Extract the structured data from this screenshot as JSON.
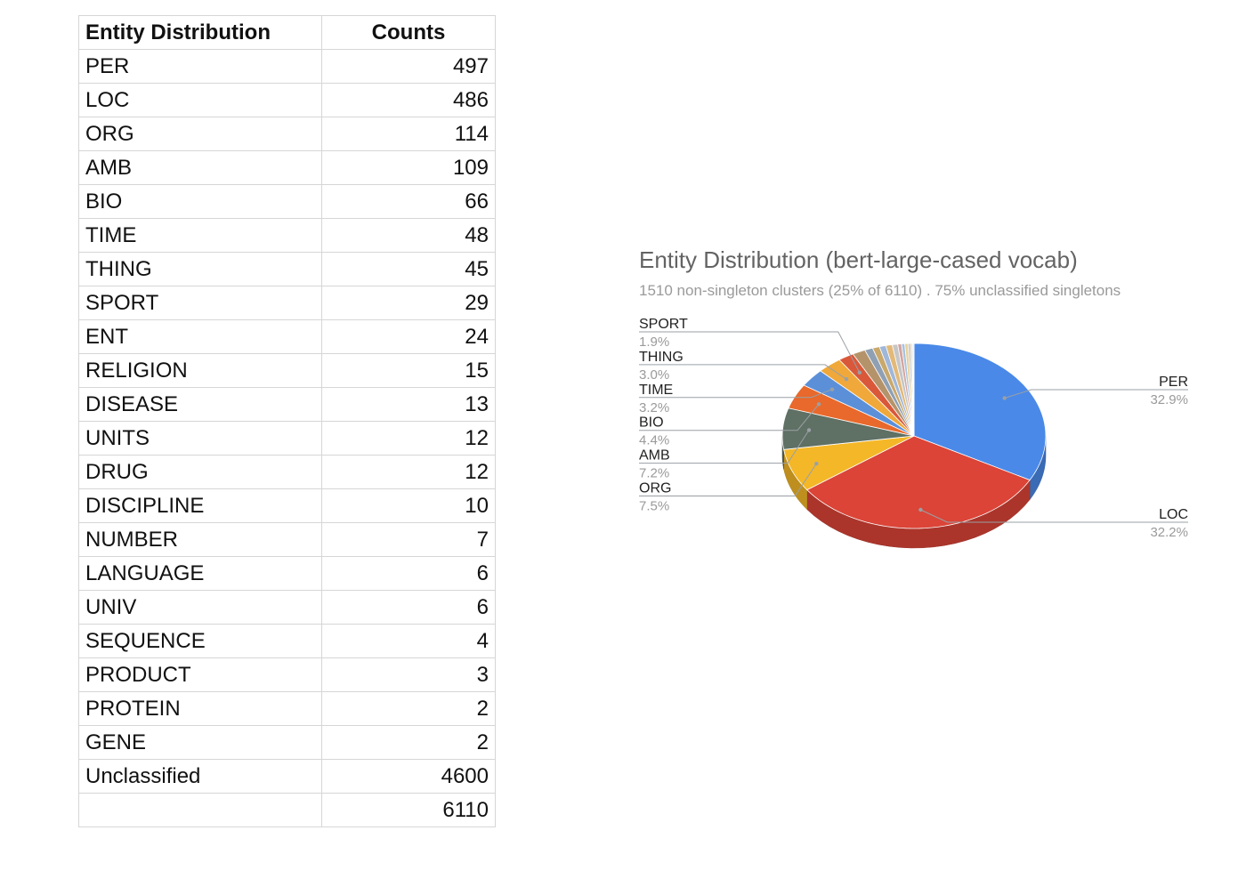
{
  "table": {
    "headers": [
      "Entity Distribution",
      "Counts"
    ],
    "rows": [
      {
        "label": "PER",
        "value": "497"
      },
      {
        "label": "LOC",
        "value": "486"
      },
      {
        "label": "ORG",
        "value": "114"
      },
      {
        "label": "AMB",
        "value": "109"
      },
      {
        "label": "BIO",
        "value": "66"
      },
      {
        "label": "TIME",
        "value": "48"
      },
      {
        "label": "THING",
        "value": "45"
      },
      {
        "label": "SPORT",
        "value": "29"
      },
      {
        "label": "ENT",
        "value": "24"
      },
      {
        "label": "RELIGION",
        "value": "15"
      },
      {
        "label": "DISEASE",
        "value": "13"
      },
      {
        "label": "UNITS",
        "value": "12"
      },
      {
        "label": "DRUG",
        "value": "12"
      },
      {
        "label": "DISCIPLINE",
        "value": "10"
      },
      {
        "label": "NUMBER",
        "value": "7"
      },
      {
        "label": "LANGUAGE",
        "value": "6"
      },
      {
        "label": "UNIV",
        "value": "6"
      },
      {
        "label": "SEQUENCE",
        "value": "4"
      },
      {
        "label": "PRODUCT",
        "value": "3"
      },
      {
        "label": "PROTEIN",
        "value": "2"
      },
      {
        "label": "GENE",
        "value": "2"
      },
      {
        "label": "Unclassified",
        "value": "4600"
      },
      {
        "label": "",
        "value": "6110"
      }
    ]
  },
  "chart_data": {
    "type": "pie",
    "title": "Entity Distribution (bert-large-cased vocab)",
    "subtitle": "1510 non-singleton clusters (25% of 6110) . 75% unclassified singletons",
    "categories": [
      "PER",
      "LOC",
      "ORG",
      "AMB",
      "BIO",
      "TIME",
      "THING",
      "SPORT",
      "ENT",
      "RELIGION",
      "DISEASE",
      "UNITS",
      "DRUG",
      "DISCIPLINE",
      "NUMBER",
      "LANGUAGE",
      "UNIV",
      "SEQUENCE",
      "PRODUCT",
      "PROTEIN",
      "GENE"
    ],
    "values": [
      497,
      486,
      114,
      109,
      66,
      48,
      45,
      29,
      24,
      15,
      13,
      12,
      12,
      10,
      7,
      6,
      6,
      4,
      3,
      2,
      2
    ],
    "colors": [
      "#4a89e8",
      "#db4437",
      "#f4b728",
      "#5f7064",
      "#e8692b",
      "#5b90d9",
      "#f0a83a",
      "#d9583a",
      "#b5936a",
      "#8fa0b4",
      "#c9a86c",
      "#9fb7d9",
      "#e3b979",
      "#c6c6c6",
      "#d4a5a0",
      "#a8c3e0",
      "#e9d29a",
      "#bfbfbf",
      "#d8c3a5",
      "#cfd8e3",
      "#e6e1d3"
    ],
    "labels": [
      {
        "name": "PER",
        "pct": "32.9%"
      },
      {
        "name": "LOC",
        "pct": "32.2%"
      },
      {
        "name": "ORG",
        "pct": "7.5%"
      },
      {
        "name": "AMB",
        "pct": "7.2%"
      },
      {
        "name": "BIO",
        "pct": "4.4%"
      },
      {
        "name": "TIME",
        "pct": "3.2%"
      },
      {
        "name": "THING",
        "pct": "3.0%"
      },
      {
        "name": "SPORT",
        "pct": "1.9%"
      }
    ],
    "legend": "none",
    "style": "3d"
  }
}
